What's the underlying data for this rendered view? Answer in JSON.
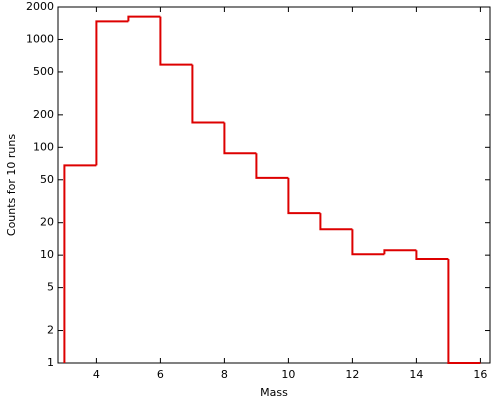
{
  "chart_data": {
    "type": "histogram",
    "xlabel": "Mass",
    "ylabel": "Counts for 10 runs",
    "bins": [
      3,
      4,
      5,
      6,
      7,
      8,
      9,
      10,
      11,
      12,
      13,
      14,
      15,
      16
    ],
    "values": [
      68,
      1470,
      1630,
      585,
      170,
      88,
      52,
      24.5,
      17.4,
      10.2,
      11.1,
      9.2,
      1
    ],
    "color": "#dd0000",
    "log_y": true,
    "xlim": [
      2.8,
      16.3
    ],
    "xticks": [
      4,
      6,
      8,
      10,
      12,
      14,
      16
    ],
    "ylim": [
      1,
      2000
    ],
    "yticks": [
      1,
      2,
      5,
      10,
      20,
      50,
      100,
      200,
      500,
      1000,
      2000
    ]
  }
}
